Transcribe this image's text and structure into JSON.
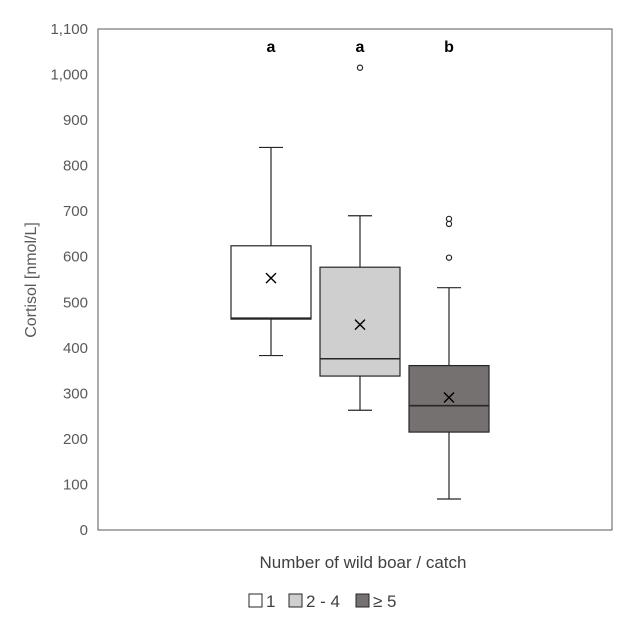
{
  "chart_data": {
    "type": "boxplot",
    "title": "",
    "xlabel": "Number of wild boar / catch",
    "ylabel": "Cortisol [nmol/L]",
    "ylim": [
      0,
      1100
    ],
    "ytick_step": 100,
    "ytick_labels": [
      "0",
      "100",
      "200",
      "300",
      "400",
      "500",
      "600",
      "700",
      "800",
      "900",
      "1,000",
      "1,100"
    ],
    "grid": false,
    "legend_position": "bottom",
    "series": [
      {
        "name": "1",
        "color": "#ffffff",
        "significance": "a",
        "min": 383,
        "q1": 463,
        "median": 465,
        "q3": 624,
        "max": 840,
        "mean": 553,
        "outliers": []
      },
      {
        "name": "2 - 4",
        "color": "#d0cfd0",
        "significance": "a",
        "min": 263,
        "q1": 338,
        "median": 376,
        "q3": 577,
        "max": 690,
        "mean": 451,
        "outliers": [
          1015
        ]
      },
      {
        "name": "≥ 5",
        "color": "#767171",
        "significance": "b",
        "min": 68,
        "q1": 215,
        "median": 273,
        "q3": 361,
        "max": 532,
        "mean": 291,
        "outliers": [
          598,
          672,
          683
        ]
      }
    ]
  }
}
